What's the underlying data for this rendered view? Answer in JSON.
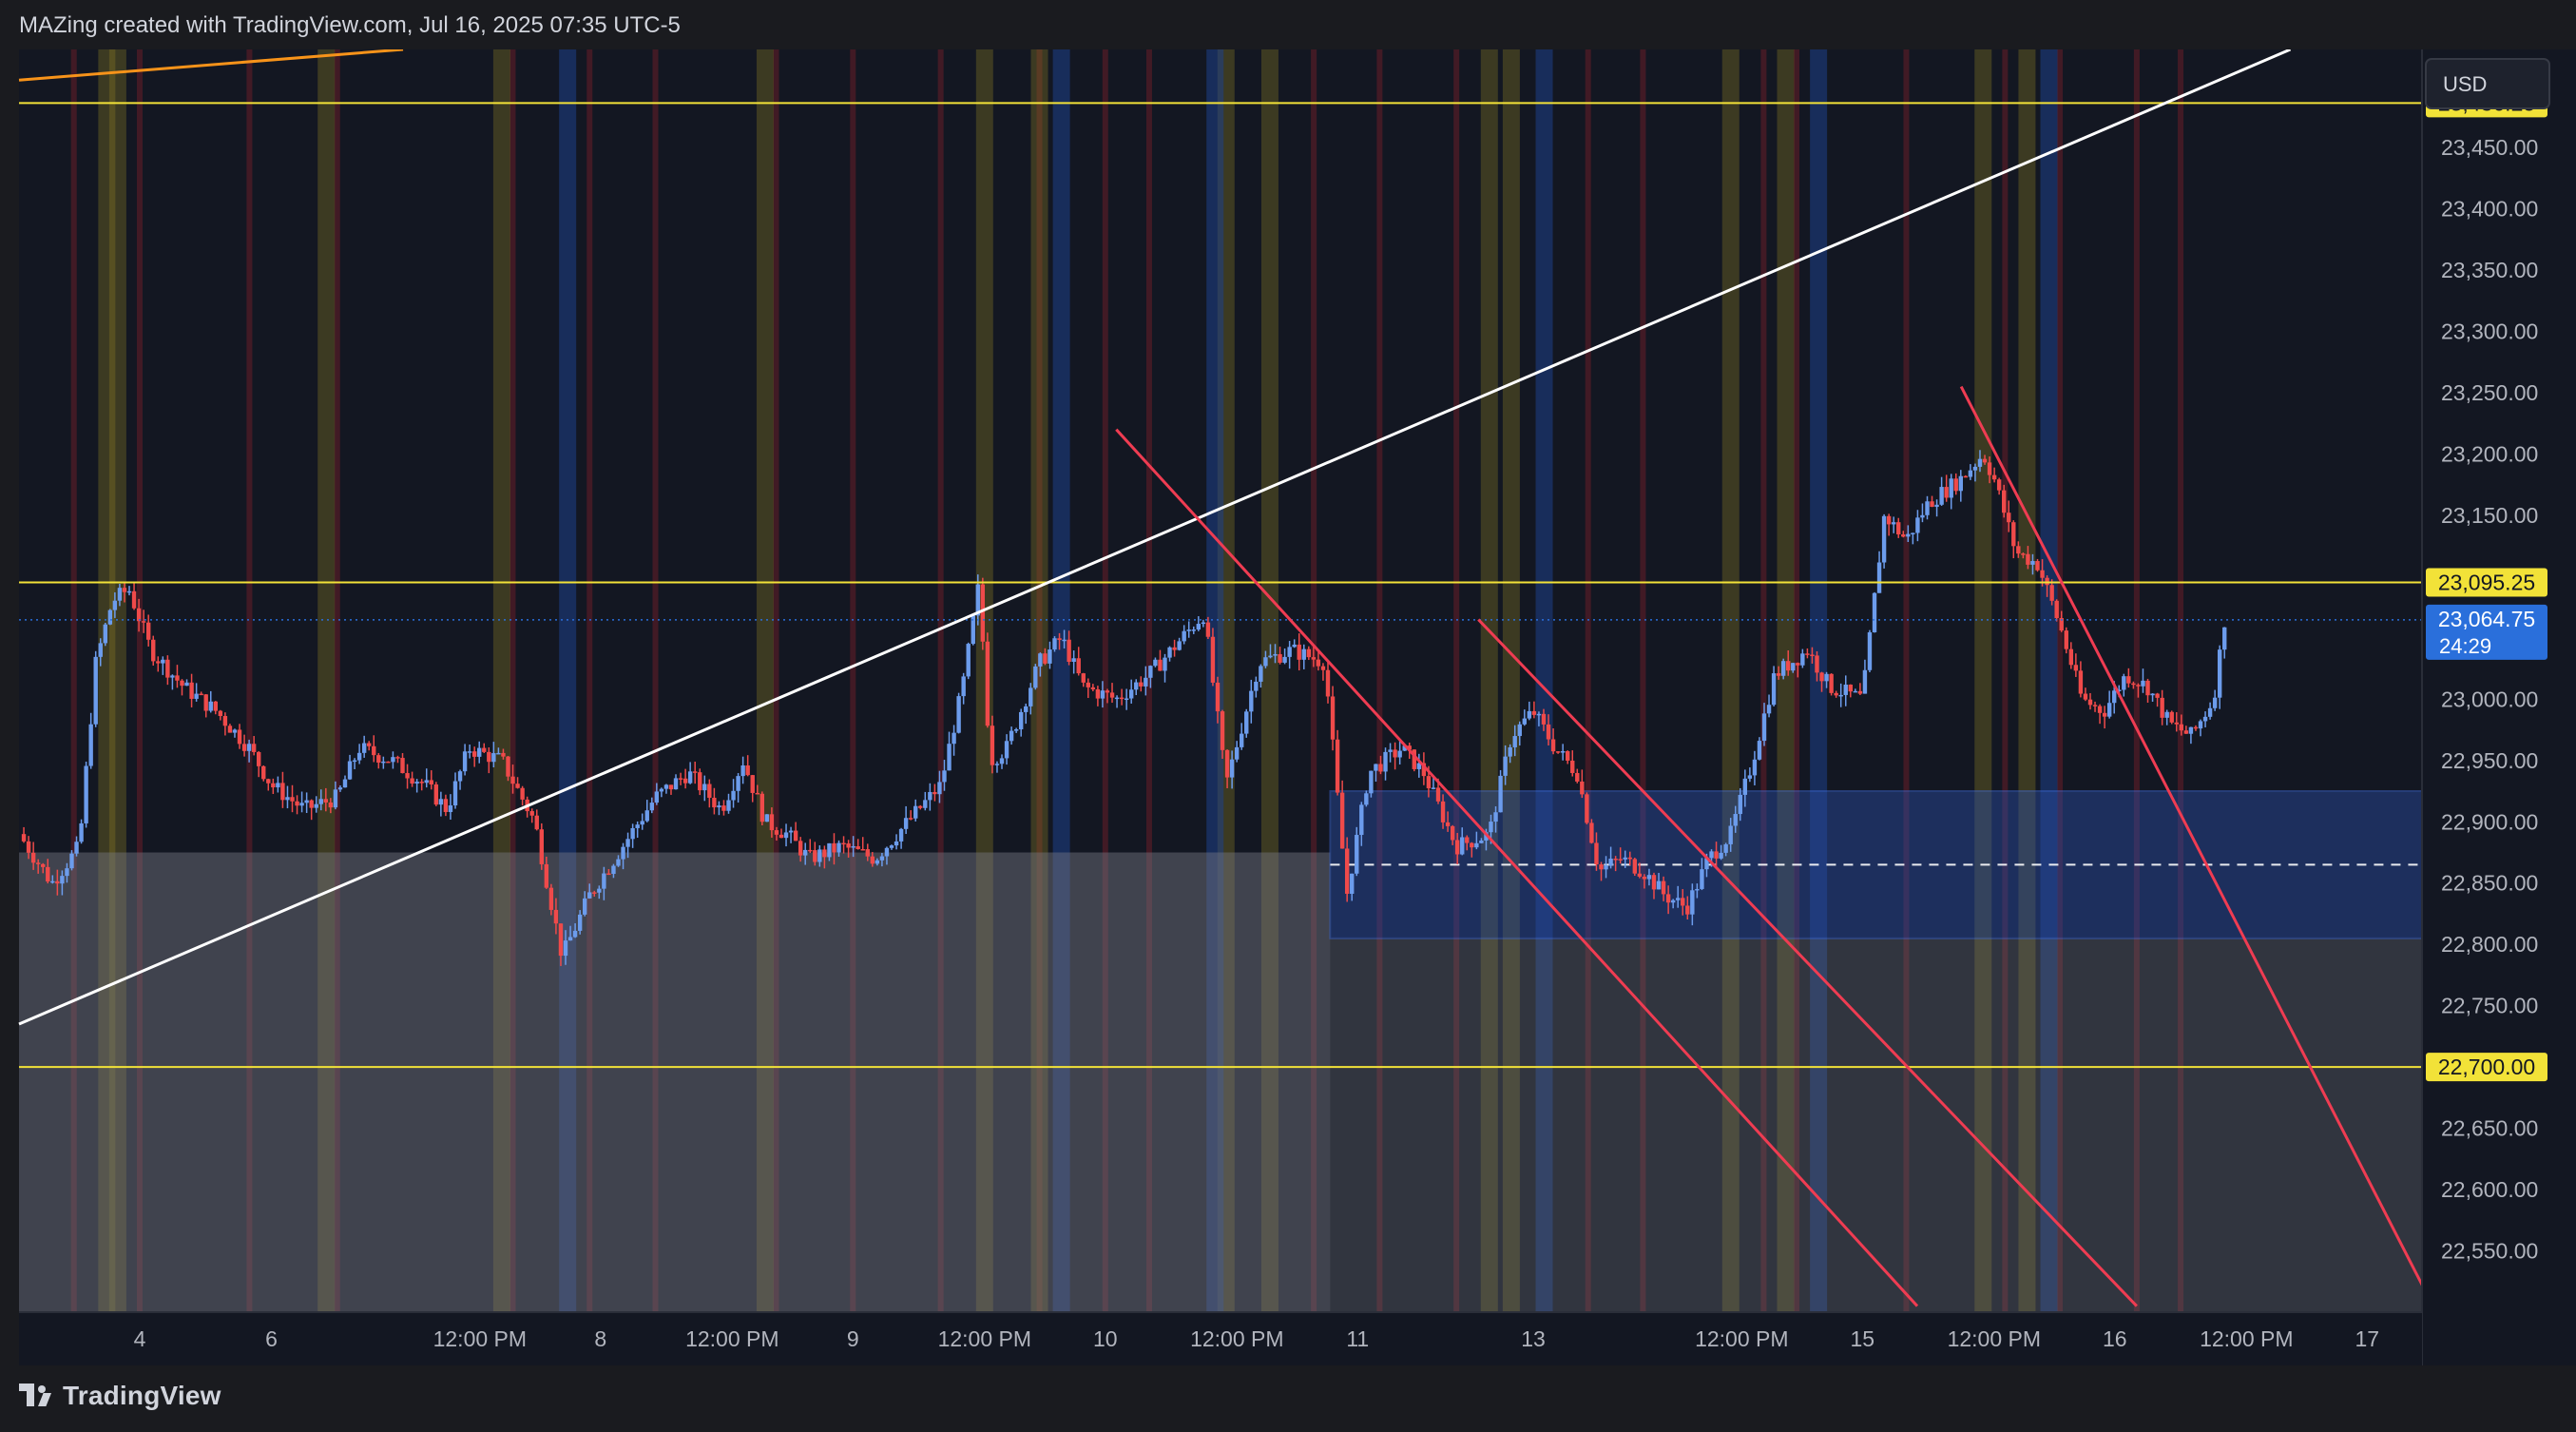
{
  "header": {
    "attribution": "MAZing created with TradingView.com, Jul 16, 2025 07:35 UTC-5"
  },
  "footer": {
    "brand": "TradingView",
    "logo_icon": "tradingview-logo-icon"
  },
  "colors": {
    "background": "#131722",
    "up": "#6c9cec",
    "down": "#ef4a4a",
    "level_line": "#f2e238",
    "trend_up": "#ffffff",
    "trend_down": "#ef3c52",
    "zone": "#2b4ea6",
    "last_price": "#2a6fdb"
  },
  "chart_data": {
    "type": "candlestick",
    "symbol_currency": "USD",
    "ylim": [
      22500,
      23530
    ],
    "y_ticks": [
      22550,
      22600,
      22650,
      22700,
      22750,
      22800,
      22850,
      22900,
      22950,
      23000,
      23050,
      23100,
      23150,
      23200,
      23250,
      23300,
      23350,
      23400,
      23450
    ],
    "y_tick_labels": [
      "22,550.00",
      "22,600.00",
      "22,650.00",
      "22,700.00",
      "22,750.00",
      "22,800.00",
      "22,850.00",
      "22,900.00",
      "22,950.00",
      "23,000.00",
      "23,050.00",
      "23,100.00",
      "23,150.00",
      "23,200.00",
      "23,250.00",
      "23,300.00",
      "23,350.00",
      "23,400.00",
      "23,450.00"
    ],
    "x_ticks": [
      {
        "label": "4",
        "t": 1.1
      },
      {
        "label": "6",
        "t": 2.3
      },
      {
        "label": "12:00 PM",
        "t": 4.2
      },
      {
        "label": "8",
        "t": 5.3
      },
      {
        "label": "12:00 PM",
        "t": 6.5
      },
      {
        "label": "9",
        "t": 7.6
      },
      {
        "label": "12:00 PM",
        "t": 8.8
      },
      {
        "label": "10",
        "t": 9.9
      },
      {
        "label": "12:00 PM",
        "t": 11.1
      },
      {
        "label": "11",
        "t": 12.2
      },
      {
        "label": "13",
        "t": 13.8
      },
      {
        "label": "12:00 PM",
        "t": 15.7
      },
      {
        "label": "15",
        "t": 16.8
      },
      {
        "label": "12:00 PM",
        "t": 18.0
      },
      {
        "label": "16",
        "t": 19.1
      },
      {
        "label": "12:00 PM",
        "t": 20.3
      },
      {
        "label": "17",
        "t": 21.4
      }
    ],
    "xlim": [
      0,
      21.9
    ],
    "levels": [
      {
        "value": 23486.25,
        "label": "23,486.25"
      },
      {
        "value": 23095.25,
        "label": "23,095.25"
      },
      {
        "value": 22700.0,
        "label": "22,700.00"
      }
    ],
    "last_price": {
      "value": 23064.75,
      "label": "23,064.75",
      "countdown": "24:29"
    },
    "zone": {
      "t0": 11.95,
      "t1": 21.95,
      "top": 22925,
      "bottom": 22805,
      "mid": 22865
    },
    "gray_zone": {
      "t0": 0,
      "t1": 11.95,
      "top": 22875
    },
    "trendlines": [
      {
        "kind": "up",
        "t0": 0,
        "v0": 22735,
        "t1": 20.7,
        "v1": 23530
      },
      {
        "kind": "up_orange",
        "t0": 0,
        "v0": 23505,
        "t1": 3.5,
        "v1": 23530
      },
      {
        "kind": "down",
        "t0": 10.0,
        "v0": 23220,
        "t1": 17.3,
        "v1": 22505
      },
      {
        "kind": "down",
        "t0": 13.3,
        "v0": 23065,
        "t1": 19.3,
        "v1": 22505
      },
      {
        "kind": "down",
        "t0": 17.7,
        "v0": 23255,
        "t1": 22.0,
        "v1": 22505
      }
    ],
    "shade_bands": {
      "red": [
        0.5,
        1.1,
        2.1,
        2.9,
        4.5,
        5.2,
        5.8,
        6.9,
        7.6,
        8.4,
        9.3,
        9.9,
        10.3,
        11.8,
        12.4,
        13.1,
        14.3,
        14.8,
        15.9,
        16.2,
        17.2,
        18.1,
        18.6,
        19.3,
        19.7
      ],
      "yellow": [
        0.8,
        0.9,
        2.8,
        4.4,
        6.8,
        8.8,
        9.3,
        11.0,
        11.4,
        13.4,
        13.6,
        15.6,
        16.1,
        17.9,
        18.3
      ],
      "blue": [
        5.0,
        9.5,
        10.9,
        13.9,
        16.4,
        18.5
      ]
    },
    "close_path": [
      [
        0.0,
        22890
      ],
      [
        0.3,
        22850
      ],
      [
        0.55,
        22880
      ],
      [
        0.7,
        23030
      ],
      [
        0.85,
        23080
      ],
      [
        1.0,
        23090
      ],
      [
        1.2,
        23040
      ],
      [
        1.5,
        23010
      ],
      [
        1.8,
        22990
      ],
      [
        2.1,
        22960
      ],
      [
        2.3,
        22930
      ],
      [
        2.6,
        22910
      ],
      [
        2.9,
        22920
      ],
      [
        3.1,
        22960
      ],
      [
        3.4,
        22950
      ],
      [
        3.7,
        22930
      ],
      [
        3.9,
        22910
      ],
      [
        4.1,
        22960
      ],
      [
        4.4,
        22950
      ],
      [
        4.7,
        22900
      ],
      [
        4.95,
        22790
      ],
      [
        5.2,
        22840
      ],
      [
        5.5,
        22880
      ],
      [
        5.8,
        22920
      ],
      [
        6.1,
        22940
      ],
      [
        6.4,
        22910
      ],
      [
        6.6,
        22950
      ],
      [
        6.8,
        22900
      ],
      [
        7.0,
        22890
      ],
      [
        7.2,
        22870
      ],
      [
        7.5,
        22880
      ],
      [
        7.8,
        22870
      ],
      [
        8.1,
        22900
      ],
      [
        8.4,
        22930
      ],
      [
        8.6,
        23010
      ],
      [
        8.75,
        23095
      ],
      [
        8.85,
        22950
      ],
      [
        9.0,
        22960
      ],
      [
        9.3,
        23030
      ],
      [
        9.5,
        23050
      ],
      [
        9.7,
        23010
      ],
      [
        10.0,
        23000
      ],
      [
        10.3,
        23020
      ],
      [
        10.6,
        23050
      ],
      [
        10.8,
        23070
      ],
      [
        11.0,
        22930
      ],
      [
        11.3,
        23030
      ],
      [
        11.6,
        23040
      ],
      [
        11.9,
        23030
      ],
      [
        12.1,
        22840
      ],
      [
        12.3,
        22940
      ],
      [
        12.6,
        22960
      ],
      [
        12.8,
        22940
      ],
      [
        13.1,
        22880
      ],
      [
        13.4,
        22890
      ],
      [
        13.6,
        22970
      ],
      [
        13.8,
        22990
      ],
      [
        14.0,
        22960
      ],
      [
        14.2,
        22940
      ],
      [
        14.4,
        22860
      ],
      [
        14.6,
        22870
      ],
      [
        14.8,
        22860
      ],
      [
        15.0,
        22840
      ],
      [
        15.2,
        22830
      ],
      [
        15.4,
        22870
      ],
      [
        15.6,
        22890
      ],
      [
        15.8,
        22950
      ],
      [
        16.0,
        23020
      ],
      [
        16.3,
        23040
      ],
      [
        16.5,
        23010
      ],
      [
        16.8,
        23000
      ],
      [
        17.0,
        23150
      ],
      [
        17.2,
        23130
      ],
      [
        17.4,
        23160
      ],
      [
        17.7,
        23180
      ],
      [
        17.9,
        23200
      ],
      [
        18.0,
        23180
      ],
      [
        18.2,
        23120
      ],
      [
        18.4,
        23110
      ],
      [
        18.6,
        23060
      ],
      [
        18.8,
        23000
      ],
      [
        19.0,
        22990
      ],
      [
        19.2,
        23020
      ],
      [
        19.4,
        23010
      ],
      [
        19.6,
        22980
      ],
      [
        19.8,
        22970
      ],
      [
        20.0,
        23000
      ],
      [
        20.1,
        23064.75
      ]
    ]
  }
}
